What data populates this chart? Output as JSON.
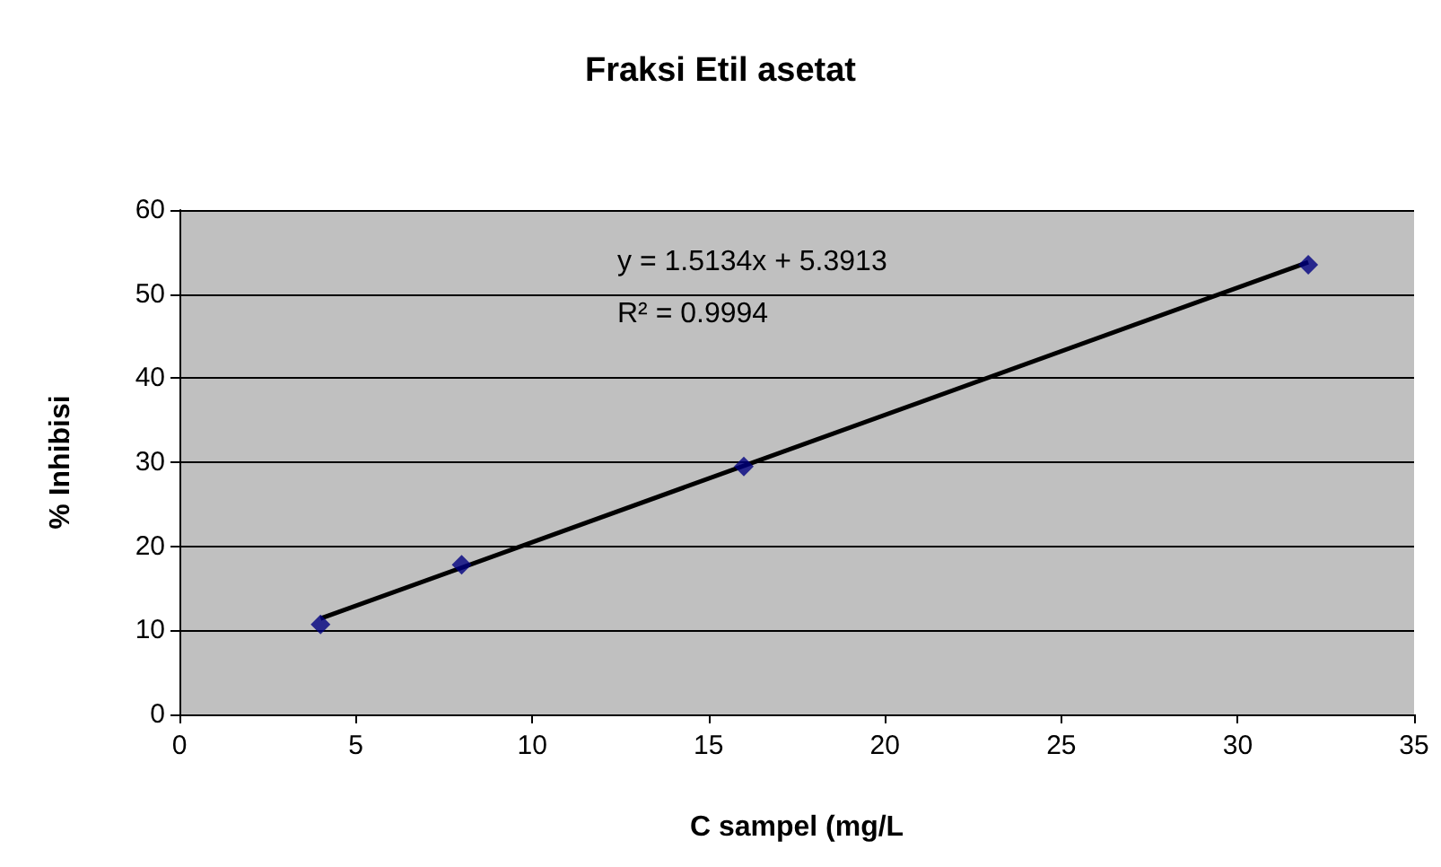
{
  "chart_data": {
    "type": "scatter",
    "title": "Fraksi Etil asetat",
    "xlabel": "C sampel (mg/L",
    "ylabel": "% Inhibisi",
    "xlim": [
      0,
      35
    ],
    "xticks": [
      0,
      5,
      10,
      15,
      20,
      25,
      30,
      35
    ],
    "ylim": [
      0,
      60
    ],
    "yticks": [
      0,
      10,
      20,
      30,
      40,
      50,
      60
    ],
    "grid": "y",
    "marker": "diamond",
    "series": [
      {
        "color": "#000080",
        "x": [
          4,
          8,
          16,
          32
        ],
        "values": [
          10.7,
          17.8,
          29.5,
          53.5
        ]
      },
      {
        "type": "line",
        "color": "#000000",
        "line_style": "solid",
        "marker": "none",
        "x": [
          4,
          32
        ],
        "values": [
          11.4,
          53.8
        ]
      }
    ],
    "annotations": [
      "y = 1.5134x + 5.3913",
      "R² = 0.9994"
    ]
  }
}
